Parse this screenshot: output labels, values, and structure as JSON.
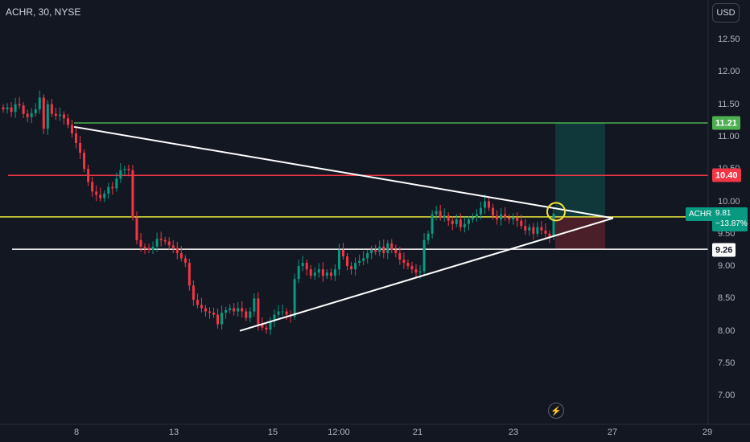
{
  "header": {
    "symbol": "ACHR, 30, NYSE",
    "currency_button": "USD"
  },
  "price_axis": {
    "ticks": [
      "12.50",
      "12.00",
      "11.50",
      "11.00",
      "10.50",
      "10.00",
      "9.50",
      "9.00",
      "8.50",
      "8.00",
      "7.50",
      "7.00"
    ]
  },
  "time_axis": {
    "ticks": [
      "8",
      "13",
      "15",
      "12:00",
      "21",
      "23",
      "27",
      "29"
    ]
  },
  "levels": {
    "target": {
      "label": "11.21",
      "value": 11.21,
      "color": "#4caf50"
    },
    "resistance": {
      "label": "10.40",
      "value": 10.4,
      "color": "#f23645"
    },
    "stop": {
      "label": "9.26",
      "value": 9.26,
      "color": "#ffffff"
    },
    "current": {
      "value": 9.76,
      "color": "#e8e83a"
    }
  },
  "current_price": {
    "ticker": "ACHR",
    "price": "9.81",
    "change": "−13.87%"
  },
  "colors": {
    "up": "#089981",
    "down": "#f23645",
    "background": "#131722",
    "trendline": "#ffffff",
    "circle": "#f5e23c"
  },
  "icons": {
    "bottom": "lightning-icon"
  },
  "chart_data": {
    "type": "candlestick",
    "title": "ACHR, 30, NYSE",
    "ylim": [
      6.8,
      12.8
    ],
    "grid": false,
    "x_ticks": [
      "8",
      "13",
      "15",
      "12:00",
      "21",
      "23",
      "27",
      "29"
    ],
    "price_lines": [
      11.21,
      10.4,
      9.76,
      9.26
    ],
    "trendlines": [
      {
        "from": {
          "x": "8",
          "y": 11.15
        },
        "to": {
          "x": "27",
          "y": 9.74
        }
      },
      {
        "from": {
          "x": "15",
          "y": 8.0
        },
        "to": {
          "x": "27",
          "y": 9.74
        }
      }
    ],
    "position": {
      "entry": 9.76,
      "target": 11.21,
      "stop": 9.26
    },
    "series_close": [
      11.42,
      11.45,
      11.38,
      11.5,
      11.48,
      11.35,
      11.3,
      11.36,
      11.42,
      11.6,
      11.12,
      11.5,
      11.35,
      11.32,
      11.34,
      11.28,
      11.18,
      11.05,
      10.9,
      10.75,
      10.5,
      10.3,
      10.15,
      10.1,
      10.05,
      10.12,
      10.22,
      10.2,
      10.35,
      10.48,
      10.5,
      10.48,
      9.75,
      9.4,
      9.3,
      9.28,
      9.25,
      9.3,
      9.42,
      9.4,
      9.38,
      9.32,
      9.28,
      9.2,
      9.12,
      9.05,
      8.7,
      8.48,
      8.4,
      8.35,
      8.3,
      8.28,
      8.25,
      8.1,
      8.28,
      8.32,
      8.35,
      8.3,
      8.35,
      8.3,
      8.2,
      8.3,
      8.5,
      8.1,
      8.05,
      8.02,
      8.15,
      8.25,
      8.3,
      8.3,
      8.25,
      8.22,
      8.8,
      9.0,
      9.05,
      8.95,
      8.85,
      8.9,
      8.95,
      8.85,
      8.9,
      8.85,
      8.95,
      9.25,
      9.15,
      9.0,
      8.95,
      9.05,
      9.08,
      9.12,
      9.2,
      9.25,
      9.22,
      9.3,
      9.2,
      9.35,
      9.25,
      9.2,
      9.1,
      9.05,
      9.0,
      8.95,
      8.9,
      8.92,
      9.4,
      9.5,
      9.8,
      9.85,
      9.75,
      9.78,
      9.7,
      9.65,
      9.72,
      9.6,
      9.65,
      9.72,
      9.75,
      9.8,
      9.9,
      10.0,
      9.9,
      9.78,
      9.72,
      9.8,
      9.75,
      9.72,
      9.75,
      9.7,
      9.62,
      9.55,
      9.6,
      9.5,
      9.6,
      9.55,
      9.5,
      9.45,
      9.81
    ]
  }
}
